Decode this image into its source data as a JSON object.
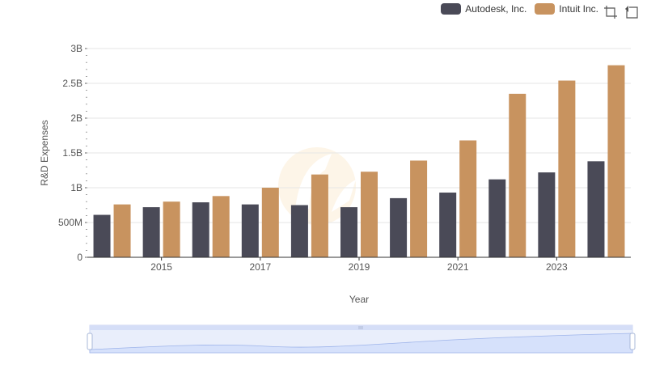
{
  "legend": {
    "items": [
      {
        "label": "Autodesk, Inc.",
        "color": "#4a4a57"
      },
      {
        "label": "Intuit Inc.",
        "color": "#c8935f"
      }
    ]
  },
  "toolbox": {
    "icons": [
      "zoom-icon",
      "zoom-reset-icon"
    ]
  },
  "chart_data": {
    "type": "bar",
    "categories": [
      "2014",
      "2015",
      "2016",
      "2017",
      "2018",
      "2019",
      "2020",
      "2021",
      "2022",
      "2023",
      "2024"
    ],
    "x_tick_labels": [
      "2015",
      "2017",
      "2019",
      "2021",
      "2023"
    ],
    "series": [
      {
        "name": "Autodesk, Inc.",
        "color": "#4a4a57",
        "values": [
          0.61,
          0.72,
          0.79,
          0.76,
          0.75,
          0.72,
          0.85,
          0.93,
          1.12,
          1.22,
          1.38
        ]
      },
      {
        "name": "Intuit Inc.",
        "color": "#c8935f",
        "values": [
          0.76,
          0.8,
          0.88,
          1.0,
          1.19,
          1.23,
          1.39,
          1.68,
          2.35,
          2.54,
          2.76
        ]
      }
    ],
    "units": "billions",
    "xlabel": "Year",
    "ylabel": "R&D Expenses",
    "ylim": [
      0,
      3
    ],
    "y_tick_values": [
      0,
      0.5,
      1,
      1.5,
      2,
      2.5,
      3
    ],
    "y_tick_labels": [
      "0",
      "500M",
      "1B",
      "1.5B",
      "2B",
      "2.5B",
      "3B"
    ],
    "grid": true,
    "legend_position": "top-right"
  }
}
